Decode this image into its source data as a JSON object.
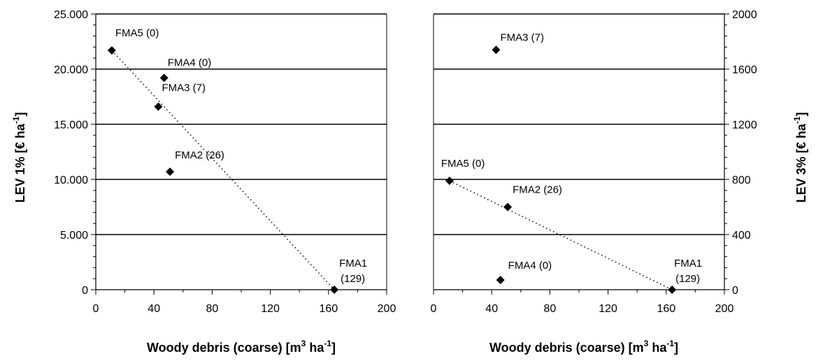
{
  "chart_data": [
    {
      "type": "scatter",
      "xlabel": {
        "main": "Woody debris (coarse) [m",
        "sup1": "3",
        "mid": " ha",
        "sup2": "-1",
        "end": "]"
      },
      "ylabel": {
        "main": "LEV 1% [€ ha",
        "sup": "-1",
        "end": "]"
      },
      "xlim": [
        0,
        200
      ],
      "ylim": [
        0,
        25000
      ],
      "x_ticks": [
        "0",
        "40",
        "80",
        "120",
        "160",
        "200"
      ],
      "y_ticks": [
        "0",
        "5.000",
        "10.000",
        "15.000",
        "20.000",
        "25.000"
      ],
      "grid": "horizontal",
      "points": [
        {
          "name": "FMA5 (0)",
          "x": 11,
          "y": 21700
        },
        {
          "name": "FMA4 (0)",
          "x": 47,
          "y": 19200
        },
        {
          "name": "FMA3 (7)",
          "x": 43,
          "y": 16600
        },
        {
          "name": "FMA2 (26)",
          "x": 51,
          "y": 10700
        },
        {
          "name": "FMA1 (129)",
          "lines": [
            "FMA1",
            "(129)"
          ],
          "x": 164,
          "y": 0
        }
      ],
      "trendline": {
        "style": "dotted",
        "from": [
          11,
          21700
        ],
        "to": [
          164,
          0
        ]
      }
    },
    {
      "type": "scatter",
      "xlabel": {
        "main": "Woody debris (coarse) [m",
        "sup1": "3",
        "mid": " ha",
        "sup2": "-1",
        "end": "]"
      },
      "ylabel": {
        "main": "LEV 3% [€ ha",
        "sup": "-1",
        "end": "]"
      },
      "xlim": [
        0,
        200
      ],
      "ylim": [
        0,
        2000
      ],
      "x_ticks": [
        "0",
        "40",
        "80",
        "120",
        "160",
        "200"
      ],
      "y_ticks": [
        "0",
        "400",
        "800",
        "1200",
        "1600",
        "2000"
      ],
      "grid": "horizontal",
      "points": [
        {
          "name": "FMA3 (7)",
          "x": 43,
          "y": 1740
        },
        {
          "name": "FMA5 (0)",
          "x": 11,
          "y": 790
        },
        {
          "name": "FMA2 (26)",
          "x": 51,
          "y": 600
        },
        {
          "name": "FMA4 (0)",
          "x": 46,
          "y": 70
        },
        {
          "name": "FMA1 (129)",
          "lines": [
            "FMA1",
            "(129)"
          ],
          "x": 164,
          "y": 0
        }
      ],
      "trendline": {
        "style": "dotted",
        "from": [
          11,
          790
        ],
        "to": [
          164,
          0
        ]
      }
    }
  ]
}
